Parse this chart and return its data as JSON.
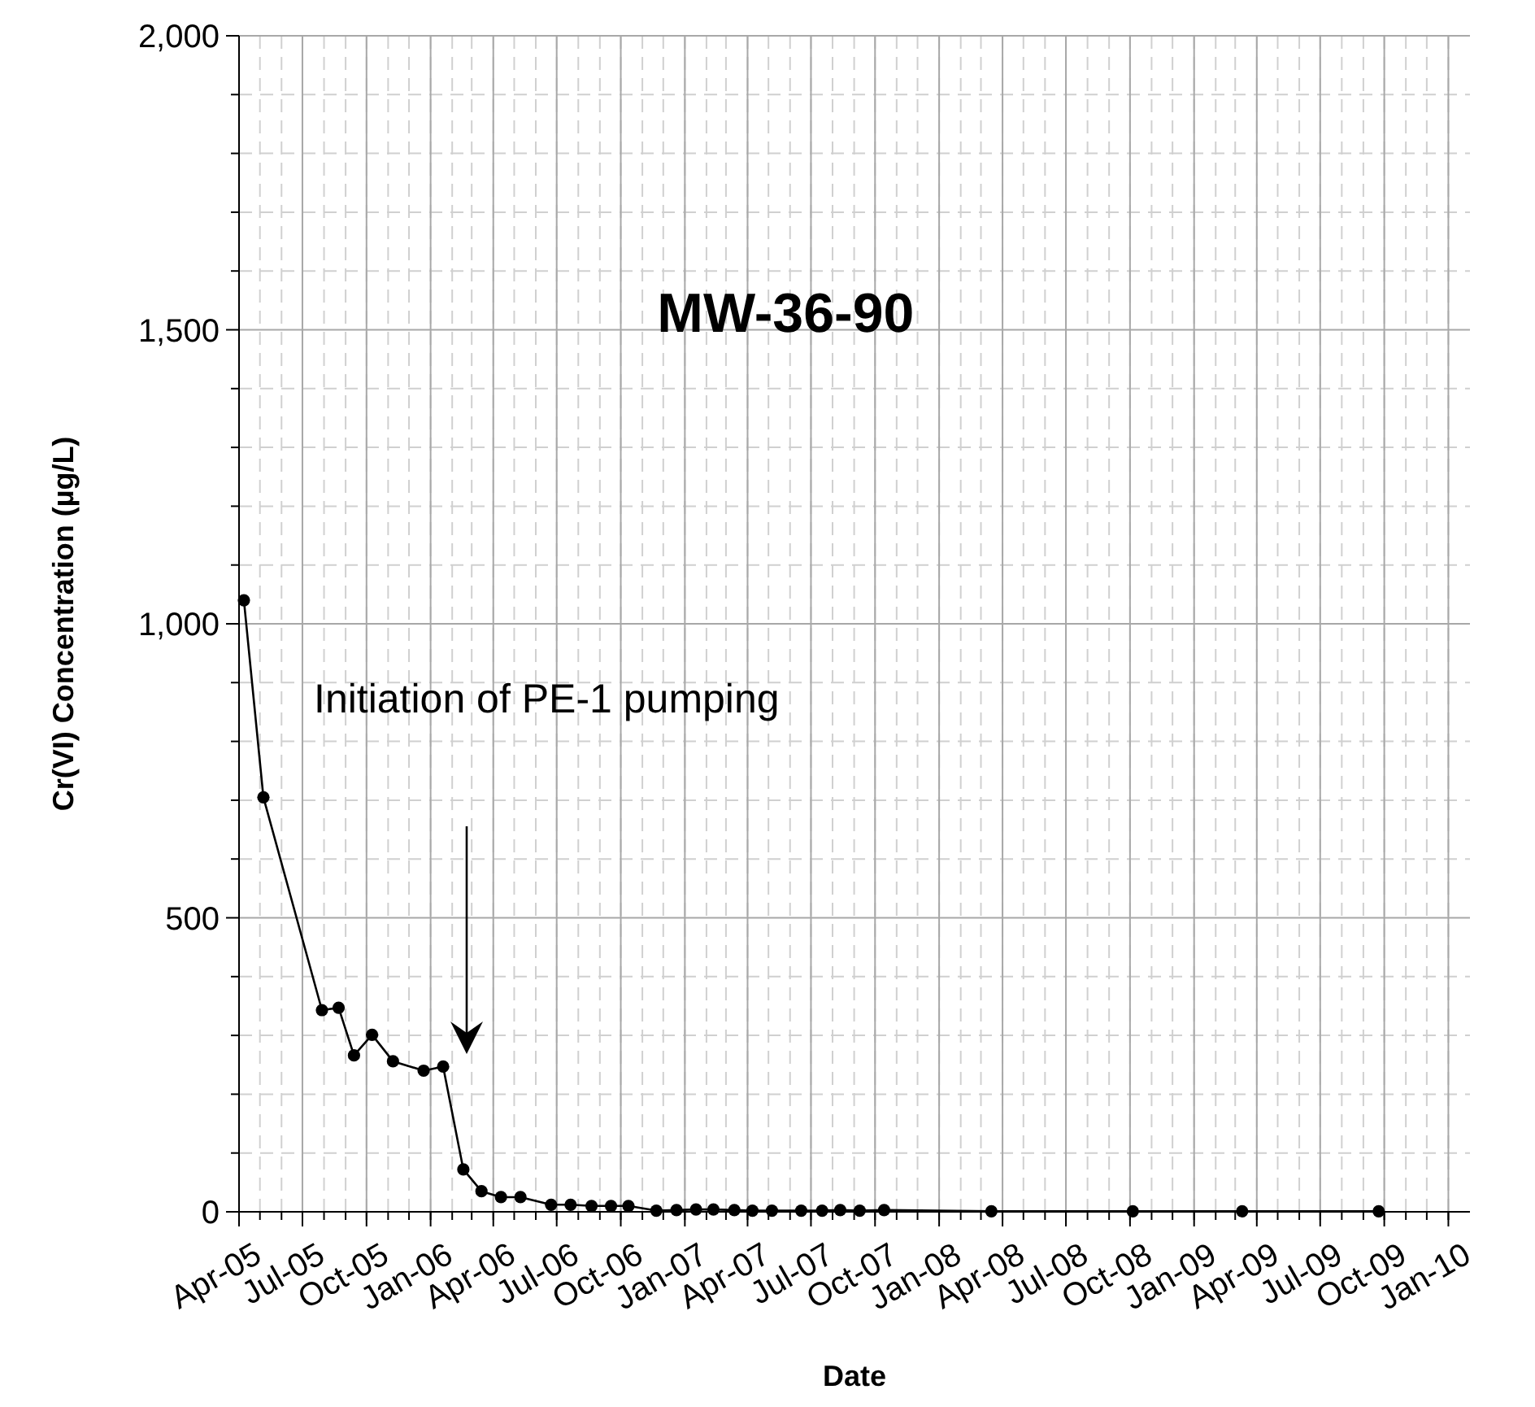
{
  "chart_data": {
    "type": "line",
    "title": "MW-36-90",
    "xlabel": "Date",
    "ylabel": "Cr(VI) Concentration (µg/L)",
    "x": [
      "2005-04-08",
      "2005-05-06",
      "2005-07-29",
      "2005-08-22",
      "2005-09-13",
      "2005-10-09",
      "2005-11-08",
      "2005-12-22",
      "2006-01-19",
      "2006-02-17",
      "2006-03-15",
      "2006-04-12",
      "2006-05-10",
      "2006-06-23",
      "2006-07-21",
      "2006-08-20",
      "2006-09-17",
      "2006-10-12",
      "2006-11-21",
      "2006-12-20",
      "2007-01-17",
      "2007-02-11",
      "2007-03-13",
      "2007-04-08",
      "2007-05-06",
      "2007-06-17",
      "2007-07-17",
      "2007-08-12",
      "2007-09-09",
      "2007-10-14",
      "2008-03-16",
      "2008-10-05",
      "2009-03-11",
      "2009-09-23"
    ],
    "series": [
      {
        "color": "#000000",
        "values": [
          1040,
          705,
          343,
          347,
          266,
          301,
          256,
          240,
          247,
          72,
          35,
          25,
          25,
          12,
          12,
          10,
          10,
          10,
          2,
          3,
          4,
          4,
          3,
          2,
          2,
          2,
          2,
          3,
          2,
          3,
          1,
          1,
          1,
          1
        ]
      }
    ],
    "xlim": [
      "2005-04-01",
      "2010-02-01"
    ],
    "xticks": [
      {
        "value": "2005-04-01",
        "label": "Apr-05"
      },
      {
        "value": "2005-07-01",
        "label": "Jul-05"
      },
      {
        "value": "2005-10-01",
        "label": "Oct-05"
      },
      {
        "value": "2006-01-01",
        "label": "Jan-06"
      },
      {
        "value": "2006-04-01",
        "label": "Apr-06"
      },
      {
        "value": "2006-07-01",
        "label": "Jul-06"
      },
      {
        "value": "2006-10-01",
        "label": "Oct-06"
      },
      {
        "value": "2007-01-01",
        "label": "Jan-07"
      },
      {
        "value": "2007-04-01",
        "label": "Apr-07"
      },
      {
        "value": "2007-07-01",
        "label": "Jul-07"
      },
      {
        "value": "2007-10-01",
        "label": "Oct-07"
      },
      {
        "value": "2008-01-01",
        "label": "Jan-08"
      },
      {
        "value": "2008-04-01",
        "label": "Apr-08"
      },
      {
        "value": "2008-07-01",
        "label": "Jul-08"
      },
      {
        "value": "2008-10-01",
        "label": "Oct-08"
      },
      {
        "value": "2009-01-01",
        "label": "Jan-09"
      },
      {
        "value": "2009-04-01",
        "label": "Apr-09"
      },
      {
        "value": "2009-07-01",
        "label": "Jul-09"
      },
      {
        "value": "2009-10-01",
        "label": "Oct-09"
      },
      {
        "value": "2010-01-01",
        "label": "Jan-10"
      }
    ],
    "ylim": [
      0,
      2000
    ],
    "yticks": [
      0,
      500,
      {
        "value": 1000,
        "label": "1,000"
      },
      {
        "value": 1500,
        "label": "1,500"
      },
      {
        "value": 2000,
        "label": "2,000"
      }
    ],
    "grid": true,
    "marker": "circle",
    "line_style": "solid",
    "annotations": [
      "Initiation of PE-1 pumping"
    ]
  }
}
